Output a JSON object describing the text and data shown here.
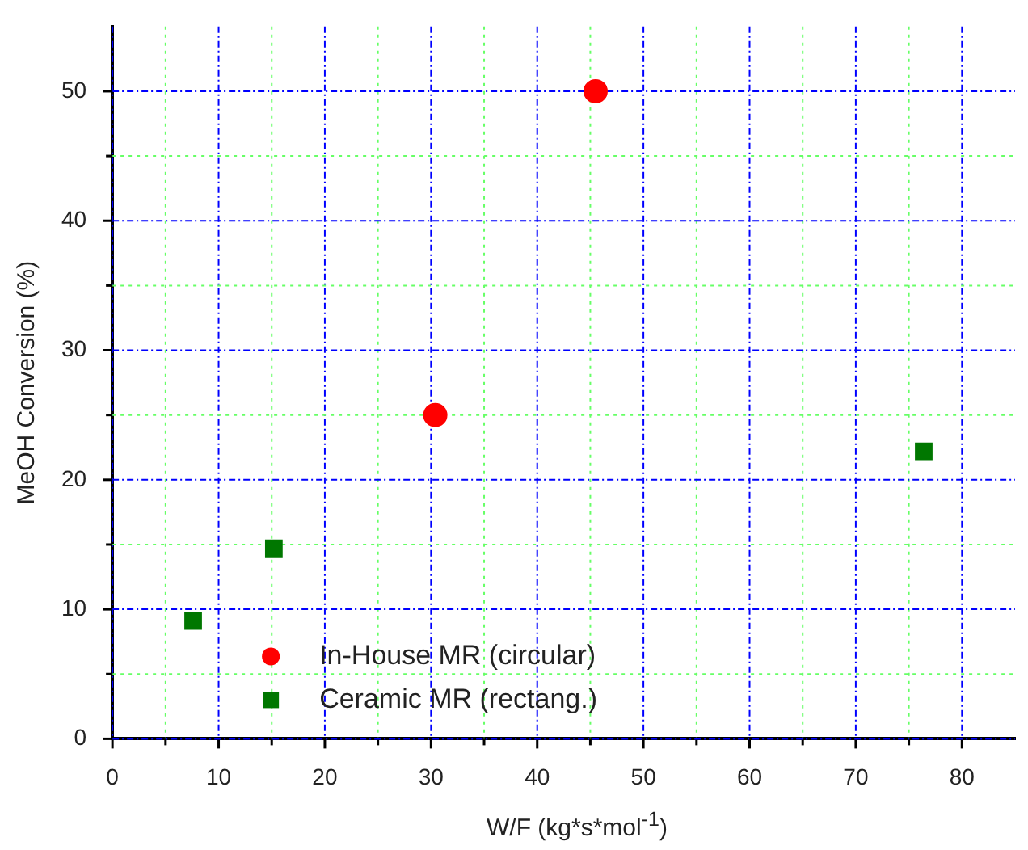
{
  "chart_data": {
    "type": "scatter",
    "xlabel": "W/F (kg*s*mol$^{-1}$)",
    "ylabel": "MeOH Conversion (%)",
    "xlim": [
      0,
      85
    ],
    "ylim": [
      0,
      55
    ],
    "xticks": [
      0,
      {
        "value": 5,
        "label": null
      },
      10,
      {
        "value": 15,
        "label": null
      },
      20,
      {
        "value": 25,
        "label": null
      },
      30,
      {
        "value": 35,
        "label": null
      },
      40,
      {
        "value": 45,
        "label": null
      },
      50,
      {
        "value": 55,
        "label": null
      },
      60,
      {
        "value": 65,
        "label": null
      },
      70,
      {
        "value": 75,
        "label": null
      },
      80
    ],
    "yticks": [
      0,
      {
        "value": 5,
        "label": null
      },
      10,
      {
        "value": 15,
        "label": null
      },
      20,
      {
        "value": 25,
        "label": null
      },
      30,
      {
        "value": 35,
        "label": null
      },
      40,
      {
        "value": 45,
        "label": null
      },
      50
    ],
    "grid": true,
    "legend": "bottom",
    "series": [
      {
        "name": "In-House MR (circular)",
        "color": "#ff0000",
        "marker": "circle",
        "x": [
          30.4,
          45.5
        ],
        "values": [
          25.0,
          50.0
        ]
      },
      {
        "name": "Ceramic MR (rectang.)",
        "color": "#007700",
        "marker": "square",
        "x": [
          7.6,
          15.2,
          76.4
        ],
        "values": [
          9.1,
          14.7,
          22.2
        ]
      }
    ]
  }
}
